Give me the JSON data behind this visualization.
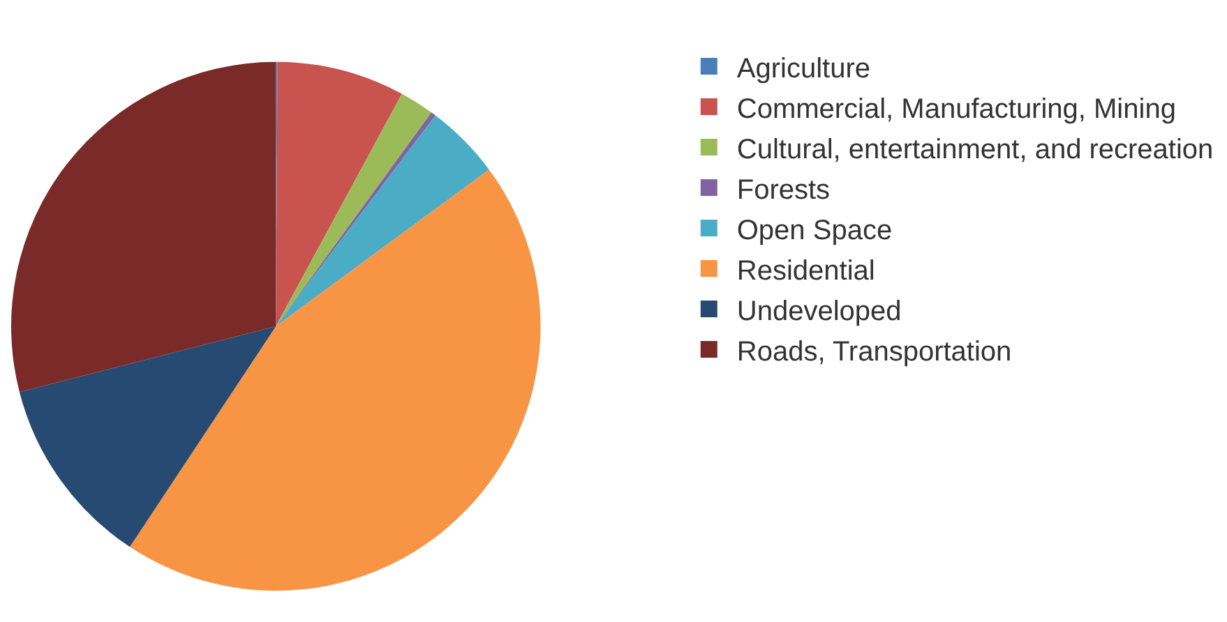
{
  "chart_data": {
    "type": "pie",
    "categories": [
      "Agriculture",
      "Commercial, Manufacturing, Mining",
      "Cultural, entertainment, and recreation",
      "Forests",
      "Open Space",
      "Residential",
      "Undeveloped",
      "Roads, Transportation"
    ],
    "values": [
      0.1,
      7.8,
      2.1,
      0.3,
      4.6,
      44.4,
      11.7,
      29.0
    ],
    "colors": [
      "#4a7ebb",
      "#c9534f",
      "#9bbb59",
      "#8064a2",
      "#4bacc6",
      "#f89545",
      "#264a72",
      "#7a2a28"
    ],
    "legend": "right"
  }
}
